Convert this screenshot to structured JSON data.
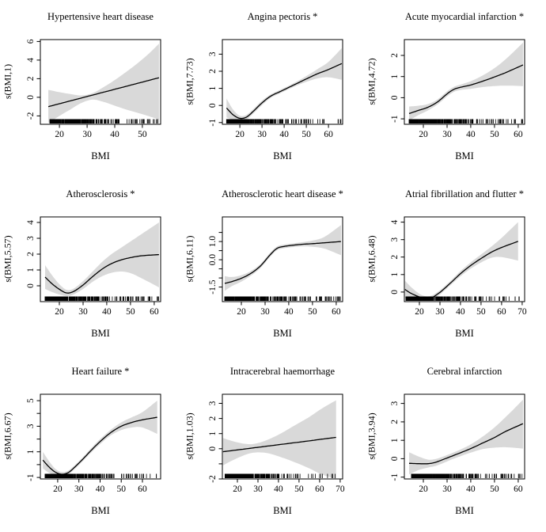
{
  "page": {
    "background": "#ffffff"
  },
  "colors": {
    "band": "#d9d9d9",
    "line": "#000000",
    "axis": "#000000"
  },
  "chart_data": [
    {
      "type": "line",
      "title": "Hypertensive heart disease",
      "xlabel": "BMI",
      "ylabel": "s(BMI,1)",
      "xlim": [
        13.1,
        56.6
      ],
      "ylim": [
        -2.9,
        6.2
      ],
      "xticks": [
        20,
        30,
        40,
        50
      ],
      "yticks": [
        {
          "v": 6,
          "l": "6"
        },
        {
          "v": 4,
          "l": "4"
        },
        {
          "v": 2,
          "l": "2"
        },
        {
          "v": 0,
          "l": "0"
        },
        {
          "v": -2,
          "l": "-2"
        }
      ],
      "x": [
        16,
        20,
        24,
        28,
        32,
        36,
        40,
        44,
        48,
        52,
        56
      ],
      "fit": [
        -1.0,
        -0.69,
        -0.38,
        -0.07,
        0.24,
        0.55,
        0.86,
        1.17,
        1.48,
        1.79,
        2.1
      ],
      "upper": [
        0.8,
        0.55,
        0.35,
        0.2,
        0.45,
        1.1,
        1.85,
        2.7,
        3.6,
        4.6,
        5.75
      ],
      "lower": [
        -2.75,
        -2.0,
        -1.3,
        -0.6,
        -0.25,
        -0.5,
        -0.9,
        -1.3,
        -1.65,
        -2.0,
        -2.4
      ],
      "rug": {
        "min": 16.5,
        "dense": 45,
        "max": 56,
        "seed": 1
      }
    },
    {
      "type": "line",
      "title": "Angina pectoris *",
      "xlabel": "BMI",
      "ylabel": "s(BMI,7.73)",
      "xlim": [
        12.1,
        66.4
      ],
      "ylim": [
        -1.1,
        3.85
      ],
      "xticks": [
        20,
        30,
        40,
        50,
        60
      ],
      "yticks": [
        {
          "v": 3,
          "l": "3"
        },
        {
          "v": 2,
          "l": "2"
        },
        {
          "v": 1,
          "l": "1"
        },
        {
          "v": 0,
          "l": "0"
        },
        {
          "v": -1,
          "l": "-1"
        }
      ],
      "x": [
        14,
        17,
        20,
        23,
        26,
        30,
        34,
        38,
        42,
        46,
        50,
        55,
        60,
        66
      ],
      "fit": [
        -0.15,
        -0.55,
        -0.75,
        -0.68,
        -0.35,
        0.15,
        0.55,
        0.8,
        1.05,
        1.3,
        1.55,
        1.85,
        2.1,
        2.45
      ],
      "upper": [
        0.4,
        -0.25,
        -0.6,
        -0.55,
        -0.22,
        0.28,
        0.65,
        0.9,
        1.15,
        1.42,
        1.72,
        2.12,
        2.55,
        3.35
      ],
      "lower": [
        -0.7,
        -0.85,
        -0.9,
        -0.81,
        -0.48,
        0.02,
        0.45,
        0.7,
        0.95,
        1.18,
        1.38,
        1.58,
        1.65,
        1.5
      ],
      "rug": {
        "min": 14,
        "dense": 48,
        "max": 66,
        "seed": 2
      }
    },
    {
      "type": "line",
      "title": "Acute myocardial infarction *",
      "xlabel": "BMI",
      "ylabel": "s(BMI,4.72)",
      "xlim": [
        12,
        62.7
      ],
      "ylim": [
        -1.26,
        2.75
      ],
      "xticks": [
        20,
        30,
        40,
        50,
        60
      ],
      "yticks": [
        {
          "v": 2,
          "l": "2"
        },
        {
          "v": 1,
          "l": "1"
        },
        {
          "v": 0,
          "l": "0"
        },
        {
          "v": -1,
          "l": "-1"
        }
      ],
      "x": [
        14,
        18,
        22,
        26,
        30,
        33,
        36,
        40,
        45,
        50,
        55,
        62
      ],
      "fit": [
        -0.75,
        -0.6,
        -0.45,
        -0.2,
        0.18,
        0.4,
        0.5,
        0.6,
        0.78,
        0.98,
        1.2,
        1.55
      ],
      "upper": [
        -0.42,
        -0.38,
        -0.3,
        -0.08,
        0.3,
        0.52,
        0.63,
        0.78,
        1.05,
        1.4,
        1.85,
        2.6
      ],
      "lower": [
        -1.08,
        -0.82,
        -0.6,
        -0.32,
        0.06,
        0.28,
        0.37,
        0.42,
        0.5,
        0.55,
        0.57,
        0.55
      ],
      "rug": {
        "min": 14,
        "dense": 50,
        "max": 62,
        "seed": 3
      }
    },
    {
      "type": "line",
      "title": "Atherosclerosis *",
      "xlabel": "BMI",
      "ylabel": "s(BMI,5.57)",
      "xlim": [
        12,
        62.7
      ],
      "ylim": [
        -1.0,
        4.35
      ],
      "xticks": [
        20,
        30,
        40,
        50,
        60
      ],
      "yticks": [
        {
          "v": 4,
          "l": "4"
        },
        {
          "v": 3,
          "l": "3"
        },
        {
          "v": 2,
          "l": "2"
        },
        {
          "v": 1,
          "l": "1"
        },
        {
          "v": 0,
          "l": "0"
        }
      ],
      "x": [
        14,
        17,
        20,
        23,
        26,
        30,
        34,
        38,
        42,
        46,
        50,
        55,
        62
      ],
      "fit": [
        0.55,
        0.12,
        -0.22,
        -0.45,
        -0.36,
        0.05,
        0.58,
        1.05,
        1.4,
        1.63,
        1.78,
        1.9,
        1.97
      ],
      "upper": [
        1.3,
        0.65,
        0.1,
        -0.25,
        -0.18,
        0.3,
        0.9,
        1.5,
        2.0,
        2.4,
        2.8,
        3.3,
        4.0
      ],
      "lower": [
        -0.2,
        -0.4,
        -0.55,
        -0.65,
        -0.55,
        -0.2,
        0.25,
        0.6,
        0.82,
        0.9,
        0.8,
        0.45,
        -0.1
      ],
      "rug": {
        "min": 14,
        "dense": 47,
        "max": 62,
        "seed": 4
      }
    },
    {
      "type": "line",
      "title": "Atherosclerotic heart disease *",
      "xlabel": "BMI",
      "ylabel": "s(BMI,6.11)",
      "xlim": [
        12,
        62.7
      ],
      "ylim": [
        -2.3,
        2.35
      ],
      "xticks": [
        20,
        30,
        40,
        50,
        60
      ],
      "yticks": [
        {
          "v": 1.5,
          "l": ""
        },
        {
          "v": 1.0,
          "l": "1.0"
        },
        {
          "v": 0.5,
          "l": ""
        },
        {
          "v": 0.0,
          "l": "0.0"
        },
        {
          "v": -0.5,
          "l": ""
        },
        {
          "v": -1.0,
          "l": ""
        },
        {
          "v": -1.5,
          "l": "-1.5"
        }
      ],
      "x": [
        13,
        16,
        20,
        24,
        28,
        32,
        35,
        38,
        42,
        46,
        50,
        55,
        62
      ],
      "fit": [
        -1.3,
        -1.2,
        -1.02,
        -0.75,
        -0.35,
        0.25,
        0.62,
        0.73,
        0.8,
        0.85,
        0.88,
        0.93,
        1.0
      ],
      "upper": [
        -0.9,
        -0.95,
        -0.85,
        -0.62,
        -0.24,
        0.36,
        0.72,
        0.83,
        0.9,
        0.97,
        1.05,
        1.25,
        1.9
      ],
      "lower": [
        -1.7,
        -1.45,
        -1.2,
        -0.88,
        -0.46,
        0.14,
        0.52,
        0.63,
        0.7,
        0.73,
        0.71,
        0.61,
        0.25
      ],
      "rug": {
        "min": 13,
        "dense": 51,
        "max": 62,
        "seed": 5
      }
    },
    {
      "type": "line",
      "title": "Atrial fibrillation and flutter *",
      "xlabel": "BMI",
      "ylabel": "s(BMI,6.48)",
      "xlim": [
        12.7,
        71.2
      ],
      "ylim": [
        -0.55,
        4.3
      ],
      "xticks": [
        20,
        30,
        40,
        50,
        60,
        70
      ],
      "yticks": [
        {
          "v": 4,
          "l": "4"
        },
        {
          "v": 3,
          "l": "3"
        },
        {
          "v": 2,
          "l": "2"
        },
        {
          "v": 1,
          "l": "1"
        },
        {
          "v": 0,
          "l": "0"
        }
      ],
      "x": [
        13,
        16,
        20,
        23,
        26,
        30,
        35,
        40,
        45,
        50,
        55,
        60,
        68
      ],
      "fit": [
        0.15,
        -0.08,
        -0.28,
        -0.37,
        -0.32,
        -0.02,
        0.5,
        1.05,
        1.52,
        1.92,
        2.28,
        2.55,
        2.9
      ],
      "upper": [
        0.65,
        0.28,
        -0.1,
        -0.24,
        -0.2,
        0.1,
        0.62,
        1.2,
        1.7,
        2.15,
        2.6,
        3.1,
        4.0
      ],
      "lower": [
        -0.35,
        -0.44,
        -0.46,
        -0.5,
        -0.44,
        -0.14,
        0.38,
        0.9,
        1.34,
        1.69,
        1.96,
        2.0,
        1.8
      ],
      "rug": {
        "min": 13.5,
        "dense": 52,
        "max": 69,
        "seed": 6
      }
    },
    {
      "type": "line",
      "title": "Heart failure *",
      "xlabel": "BMI",
      "ylabel": "s(BMI,6.67)",
      "xlim": [
        11.8,
        68.6
      ],
      "ylim": [
        -1.12,
        5.5
      ],
      "xticks": [
        20,
        30,
        40,
        50,
        60
      ],
      "yticks": [
        {
          "v": 5,
          "l": "5"
        },
        {
          "v": 4,
          "l": ""
        },
        {
          "v": 3,
          "l": "3"
        },
        {
          "v": 2,
          "l": ""
        },
        {
          "v": 1,
          "l": "1"
        },
        {
          "v": 0,
          "l": ""
        },
        {
          "v": -1,
          "l": "-1"
        }
      ],
      "x": [
        13,
        16,
        19,
        22,
        25,
        28,
        32,
        36,
        40,
        45,
        50,
        55,
        60,
        67
      ],
      "fit": [
        0.35,
        -0.2,
        -0.6,
        -0.75,
        -0.62,
        -0.2,
        0.45,
        1.15,
        1.8,
        2.5,
        3.0,
        3.3,
        3.5,
        3.7
      ],
      "upper": [
        1.0,
        0.25,
        -0.35,
        -0.58,
        -0.47,
        -0.05,
        0.6,
        1.32,
        2.0,
        2.72,
        3.3,
        3.7,
        4.1,
        5.0
      ],
      "lower": [
        -0.3,
        -0.65,
        -0.85,
        -0.92,
        -0.77,
        -0.35,
        0.3,
        0.98,
        1.6,
        2.28,
        2.7,
        2.9,
        2.9,
        2.4
      ],
      "rug": {
        "min": 14,
        "dense": 52,
        "max": 67,
        "seed": 7
      }
    },
    {
      "type": "line",
      "title": "Intracerebral haemorrhage",
      "xlabel": "BMI",
      "ylabel": "s(BMI,1.03)",
      "xlim": [
        12.7,
        71.2
      ],
      "ylim": [
        -2.0,
        3.6
      ],
      "xticks": [
        20,
        30,
        40,
        50,
        60,
        70
      ],
      "yticks": [
        {
          "v": 3,
          "l": "3"
        },
        {
          "v": 2,
          "l": "2"
        },
        {
          "v": 1,
          "l": "1"
        },
        {
          "v": 0,
          "l": "0"
        },
        {
          "v": -1,
          "l": ""
        },
        {
          "v": -2,
          "l": "-2"
        }
      ],
      "x": [
        13,
        20,
        27,
        34,
        41,
        48,
        55,
        61,
        68
      ],
      "fit": [
        -0.2,
        -0.08,
        0.04,
        0.16,
        0.28,
        0.4,
        0.52,
        0.63,
        0.75
      ],
      "upper": [
        0.7,
        0.42,
        0.3,
        0.55,
        1.0,
        1.55,
        2.1,
        2.65,
        3.2
      ],
      "lower": [
        -1.1,
        -0.62,
        -0.28,
        -0.28,
        -0.55,
        -0.9,
        -1.3,
        -1.7,
        -2.0
      ],
      "rug": {
        "min": 14,
        "dense": 43,
        "max": 68,
        "seed": 8
      }
    },
    {
      "type": "line",
      "title": "Cerebral infarction",
      "xlabel": "BMI",
      "ylabel": "s(BMI,3.94)",
      "xlim": [
        12,
        62.7
      ],
      "ylim": [
        -1.1,
        3.5
      ],
      "xticks": [
        20,
        30,
        40,
        50,
        60
      ],
      "yticks": [
        {
          "v": 3,
          "l": "3"
        },
        {
          "v": 2,
          "l": "2"
        },
        {
          "v": 1,
          "l": "1"
        },
        {
          "v": 0,
          "l": "0"
        },
        {
          "v": -1,
          "l": "-1"
        }
      ],
      "x": [
        14,
        18,
        22,
        25,
        28,
        32,
        36,
        40,
        45,
        50,
        55,
        62
      ],
      "fit": [
        -0.25,
        -0.27,
        -0.27,
        -0.2,
        -0.06,
        0.14,
        0.34,
        0.55,
        0.85,
        1.15,
        1.5,
        1.9
      ],
      "upper": [
        0.35,
        0.12,
        -0.05,
        -0.02,
        0.1,
        0.3,
        0.52,
        0.78,
        1.2,
        1.7,
        2.3,
        3.2
      ],
      "lower": [
        -0.85,
        -0.62,
        -0.48,
        -0.4,
        -0.26,
        -0.04,
        0.15,
        0.33,
        0.52,
        0.6,
        0.62,
        0.55
      ],
      "rug": {
        "min": 15,
        "dense": 49,
        "max": 62,
        "seed": 9
      }
    }
  ]
}
